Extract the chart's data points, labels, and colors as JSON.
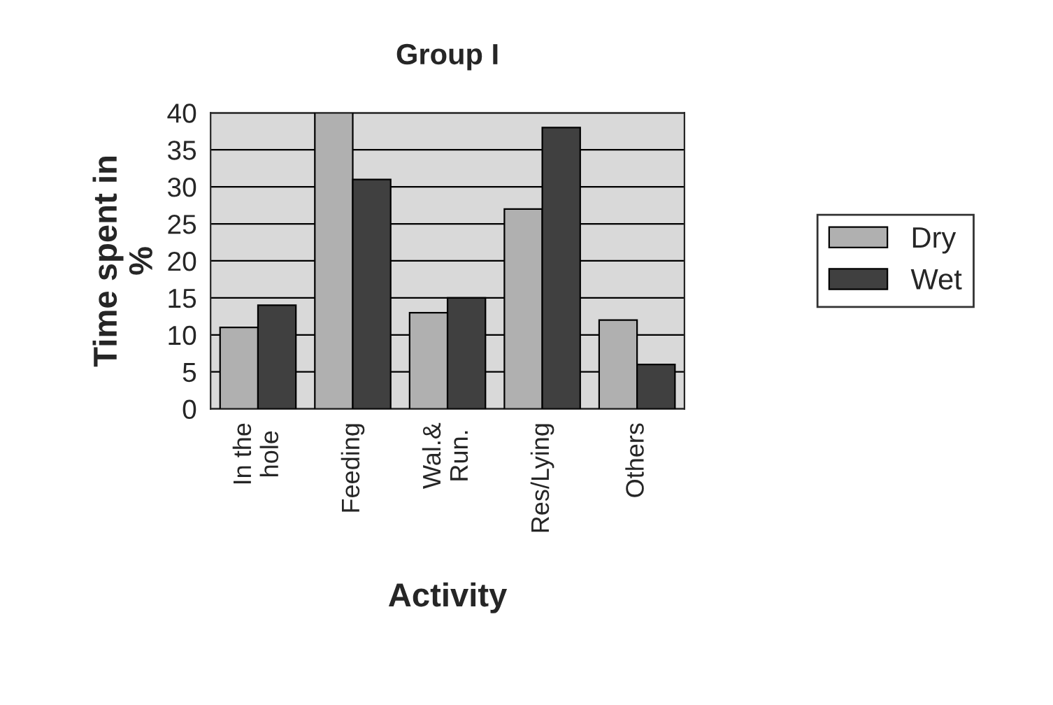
{
  "chart_data": {
    "type": "bar",
    "title": "Group I",
    "xlabel": "Activity",
    "ylabel": "Time spent in\n%",
    "categories": [
      "In the\nhole",
      "Feeding",
      "Wal.&\nRun.",
      "Res/Lying",
      "Others"
    ],
    "series": [
      {
        "name": "Dry",
        "color": "#b0b0b0",
        "values": [
          11,
          40,
          13,
          27,
          12
        ]
      },
      {
        "name": "Wet",
        "color": "#404040",
        "values": [
          14,
          31,
          15,
          38,
          6
        ]
      }
    ],
    "ylim": [
      0,
      40
    ],
    "yticks": [
      0,
      5,
      10,
      15,
      20,
      25,
      30,
      35,
      40
    ],
    "grid": "y",
    "legend": "right"
  }
}
